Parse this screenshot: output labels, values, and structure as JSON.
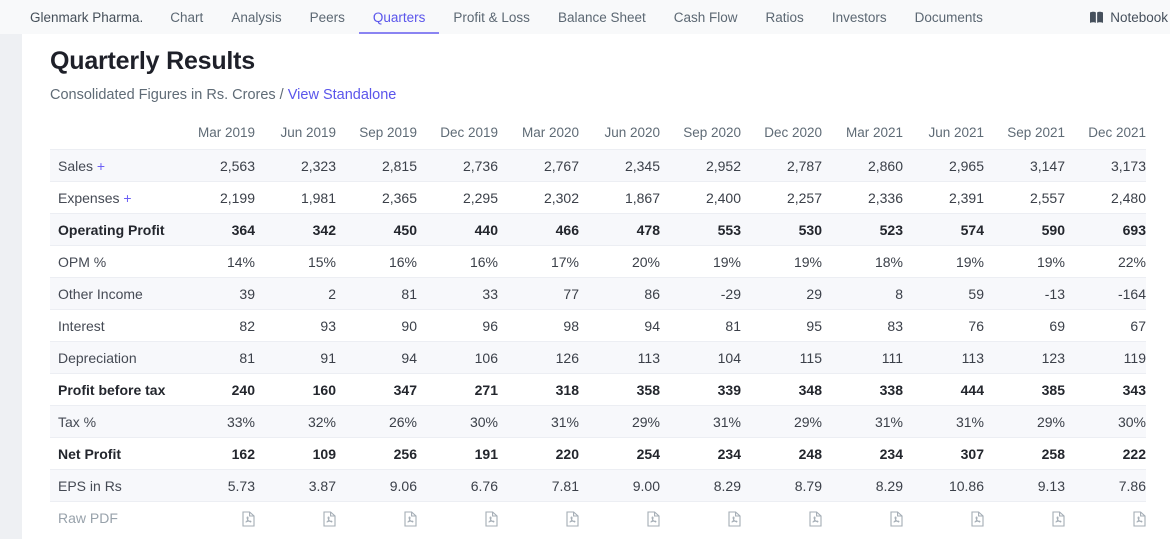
{
  "nav": {
    "company": "Glenmark Pharma.",
    "tabs": [
      {
        "label": "Chart",
        "active": false
      },
      {
        "label": "Analysis",
        "active": false
      },
      {
        "label": "Peers",
        "active": false
      },
      {
        "label": "Quarters",
        "active": true
      },
      {
        "label": "Profit & Loss",
        "active": false
      },
      {
        "label": "Balance Sheet",
        "active": false
      },
      {
        "label": "Cash Flow",
        "active": false
      },
      {
        "label": "Ratios",
        "active": false
      },
      {
        "label": "Investors",
        "active": false
      },
      {
        "label": "Documents",
        "active": false
      }
    ],
    "notebook_label": "Notebook"
  },
  "header": {
    "title": "Quarterly Results",
    "subtitle": "Consolidated Figures in Rs. Crores /",
    "standalone_link": "View Standalone"
  },
  "table": {
    "columns": [
      "Mar 2019",
      "Jun 2019",
      "Sep 2019",
      "Dec 2019",
      "Mar 2020",
      "Jun 2020",
      "Sep 2020",
      "Dec 2020",
      "Mar 2021",
      "Jun 2021",
      "Sep 2021",
      "Dec 2021"
    ],
    "expand_symbol": "+",
    "rows": [
      {
        "label": "Sales",
        "expandable": true,
        "bold": false,
        "values": [
          "2,563",
          "2,323",
          "2,815",
          "2,736",
          "2,767",
          "2,345",
          "2,952",
          "2,787",
          "2,860",
          "2,965",
          "3,147",
          "3,173"
        ]
      },
      {
        "label": "Expenses",
        "expandable": true,
        "bold": false,
        "values": [
          "2,199",
          "1,981",
          "2,365",
          "2,295",
          "2,302",
          "1,867",
          "2,400",
          "2,257",
          "2,336",
          "2,391",
          "2,557",
          "2,480"
        ]
      },
      {
        "label": "Operating Profit",
        "expandable": false,
        "bold": true,
        "values": [
          "364",
          "342",
          "450",
          "440",
          "466",
          "478",
          "553",
          "530",
          "523",
          "574",
          "590",
          "693"
        ]
      },
      {
        "label": "OPM %",
        "expandable": false,
        "bold": false,
        "values": [
          "14%",
          "15%",
          "16%",
          "16%",
          "17%",
          "20%",
          "19%",
          "19%",
          "18%",
          "19%",
          "19%",
          "22%"
        ]
      },
      {
        "label": "Other Income",
        "expandable": false,
        "bold": false,
        "values": [
          "39",
          "2",
          "81",
          "33",
          "77",
          "86",
          "-29",
          "29",
          "8",
          "59",
          "-13",
          "-164"
        ]
      },
      {
        "label": "Interest",
        "expandable": false,
        "bold": false,
        "values": [
          "82",
          "93",
          "90",
          "96",
          "98",
          "94",
          "81",
          "95",
          "83",
          "76",
          "69",
          "67"
        ]
      },
      {
        "label": "Depreciation",
        "expandable": false,
        "bold": false,
        "values": [
          "81",
          "91",
          "94",
          "106",
          "126",
          "113",
          "104",
          "115",
          "111",
          "113",
          "123",
          "119"
        ]
      },
      {
        "label": "Profit before tax",
        "expandable": false,
        "bold": true,
        "values": [
          "240",
          "160",
          "347",
          "271",
          "318",
          "358",
          "339",
          "348",
          "338",
          "444",
          "385",
          "343"
        ]
      },
      {
        "label": "Tax %",
        "expandable": false,
        "bold": false,
        "values": [
          "33%",
          "32%",
          "26%",
          "30%",
          "31%",
          "29%",
          "31%",
          "29%",
          "31%",
          "31%",
          "29%",
          "30%"
        ]
      },
      {
        "label": "Net Profit",
        "expandable": false,
        "bold": true,
        "values": [
          "162",
          "109",
          "256",
          "191",
          "220",
          "254",
          "234",
          "248",
          "234",
          "307",
          "258",
          "222"
        ]
      },
      {
        "label": "EPS in Rs",
        "expandable": false,
        "bold": false,
        "values": [
          "5.73",
          "3.87",
          "9.06",
          "6.76",
          "7.81",
          "9.00",
          "8.29",
          "8.79",
          "8.29",
          "10.86",
          "9.13",
          "7.86"
        ]
      }
    ],
    "raw_pdf_label": "Raw PDF"
  },
  "colors": {
    "accent": "#5a55eb",
    "nav_bg": "#f8f9fa",
    "stripe_bg": "#f7f8fb",
    "muted_text": "#5f6b76",
    "pdf_icon_gray": "#a4adb5"
  }
}
